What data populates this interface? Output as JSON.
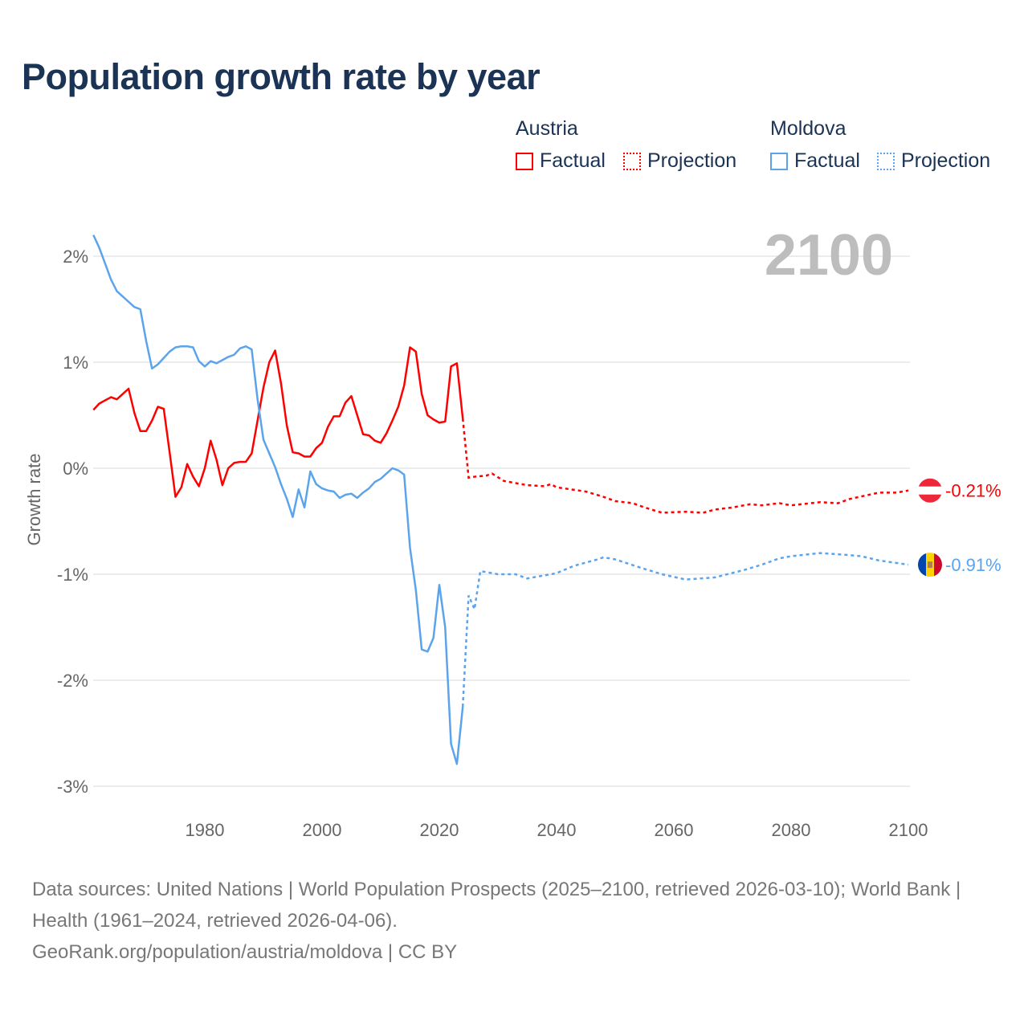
{
  "title": "Population growth rate by year",
  "legend": {
    "groups": [
      {
        "name": "Austria",
        "factual": "Factual",
        "projection": "Projection",
        "color": "#ff0000"
      },
      {
        "name": "Moldova",
        "factual": "Factual",
        "projection": "Projection",
        "color": "#5ba4ec"
      }
    ]
  },
  "year_label": "2100",
  "footer": {
    "line1": "Data sources: United Nations | World Population Prospects (2025–2100, retrieved 2026-03-10); World Bank | Health (1961–2024, retrieved 2026-04-06).",
    "line2": "GeoRank.org/population/austria/moldova | CC BY"
  },
  "chart_data": {
    "type": "line",
    "title": "Population growth rate by year",
    "xlabel": "",
    "ylabel": "Growth rate",
    "xlim": [
      1961,
      2100
    ],
    "ylim": [
      -3.3,
      2.4
    ],
    "xticks": [
      1980,
      2000,
      2020,
      2040,
      2060,
      2080,
      2100
    ],
    "yticks": [
      {
        "v": 2,
        "label": "2%"
      },
      {
        "v": 1,
        "label": "1%"
      },
      {
        "v": 0,
        "label": "0%"
      },
      {
        "v": -1,
        "label": "-1%"
      },
      {
        "v": -2,
        "label": "-2%"
      },
      {
        "v": -3,
        "label": "-3%"
      }
    ],
    "grid": true,
    "legend_position": "top-right",
    "series": [
      {
        "name": "Austria",
        "color": "#ff0000",
        "end_label": "-0.21%",
        "factual": {
          "start": 1961,
          "values": [
            0.55,
            0.61,
            0.64,
            0.67,
            0.65,
            0.7,
            0.75,
            0.52,
            0.35,
            0.35,
            0.45,
            0.58,
            0.56,
            0.15,
            -0.27,
            -0.18,
            0.04,
            -0.08,
            -0.17,
            0.0,
            0.26,
            0.08,
            -0.16,
            0.0,
            0.05,
            0.06,
            0.06,
            0.14,
            0.45,
            0.76,
            1.0,
            1.11,
            0.8,
            0.4,
            0.15,
            0.14,
            0.11,
            0.11,
            0.19,
            0.24,
            0.39,
            0.49,
            0.49,
            0.62,
            0.68,
            0.5,
            0.32,
            0.31,
            0.26,
            0.24,
            0.33,
            0.45,
            0.58,
            0.78,
            1.14,
            1.1,
            0.7,
            0.5,
            0.46,
            0.43,
            0.44,
            0.96,
            0.99,
            0.47
          ]
        },
        "projection": {
          "x": [
            2024,
            2025,
            2026,
            2028,
            2029,
            2031,
            2035,
            2038,
            2039,
            2040,
            2045,
            2048,
            2050,
            2053,
            2055,
            2058,
            2062,
            2065,
            2067,
            2070,
            2073,
            2075,
            2078,
            2080,
            2085,
            2088,
            2090,
            2095,
            2098,
            2100
          ],
          "values": [
            0.47,
            -0.09,
            -0.08,
            -0.07,
            -0.05,
            -0.12,
            -0.16,
            -0.17,
            -0.15,
            -0.18,
            -0.22,
            -0.27,
            -0.31,
            -0.33,
            -0.37,
            -0.42,
            -0.41,
            -0.42,
            -0.39,
            -0.37,
            -0.34,
            -0.35,
            -0.33,
            -0.35,
            -0.32,
            -0.33,
            -0.29,
            -0.23,
            -0.23,
            -0.21
          ]
        }
      },
      {
        "name": "Moldova",
        "color": "#5ba4ec",
        "end_label": "-0.91%",
        "factual": {
          "start": 1961,
          "values": [
            2.2,
            2.08,
            1.93,
            1.78,
            1.67,
            1.62,
            1.57,
            1.52,
            1.5,
            1.2,
            0.94,
            0.98,
            1.04,
            1.1,
            1.14,
            1.15,
            1.15,
            1.14,
            1.01,
            0.96,
            1.01,
            0.99,
            1.02,
            1.05,
            1.07,
            1.13,
            1.15,
            1.12,
            0.65,
            0.27,
            0.14,
            0.01,
            -0.15,
            -0.29,
            -0.46,
            -0.2,
            -0.37,
            -0.03,
            -0.15,
            -0.19,
            -0.21,
            -0.22,
            -0.28,
            -0.25,
            -0.24,
            -0.28,
            -0.23,
            -0.19,
            -0.13,
            -0.1,
            -0.05,
            0.0,
            -0.02,
            -0.06,
            -0.75,
            -1.15,
            -1.71,
            -1.73,
            -1.6,
            -1.1,
            -1.5,
            -2.6,
            -2.79,
            -2.25
          ]
        },
        "projection": {
          "x": [
            2024,
            2025,
            2026,
            2027,
            2030,
            2033,
            2035,
            2040,
            2043,
            2045,
            2047,
            2048,
            2050,
            2055,
            2058,
            2062,
            2067,
            2072,
            2075,
            2078,
            2080,
            2085,
            2090,
            2092,
            2095,
            2100
          ],
          "values": [
            -2.25,
            -1.2,
            -1.33,
            -0.97,
            -1.0,
            -1.0,
            -1.04,
            -0.99,
            -0.92,
            -0.89,
            -0.86,
            -0.84,
            -0.86,
            -0.95,
            -1.0,
            -1.05,
            -1.03,
            -0.96,
            -0.91,
            -0.85,
            -0.83,
            -0.8,
            -0.82,
            -0.83,
            -0.87,
            -0.91
          ]
        }
      }
    ]
  }
}
